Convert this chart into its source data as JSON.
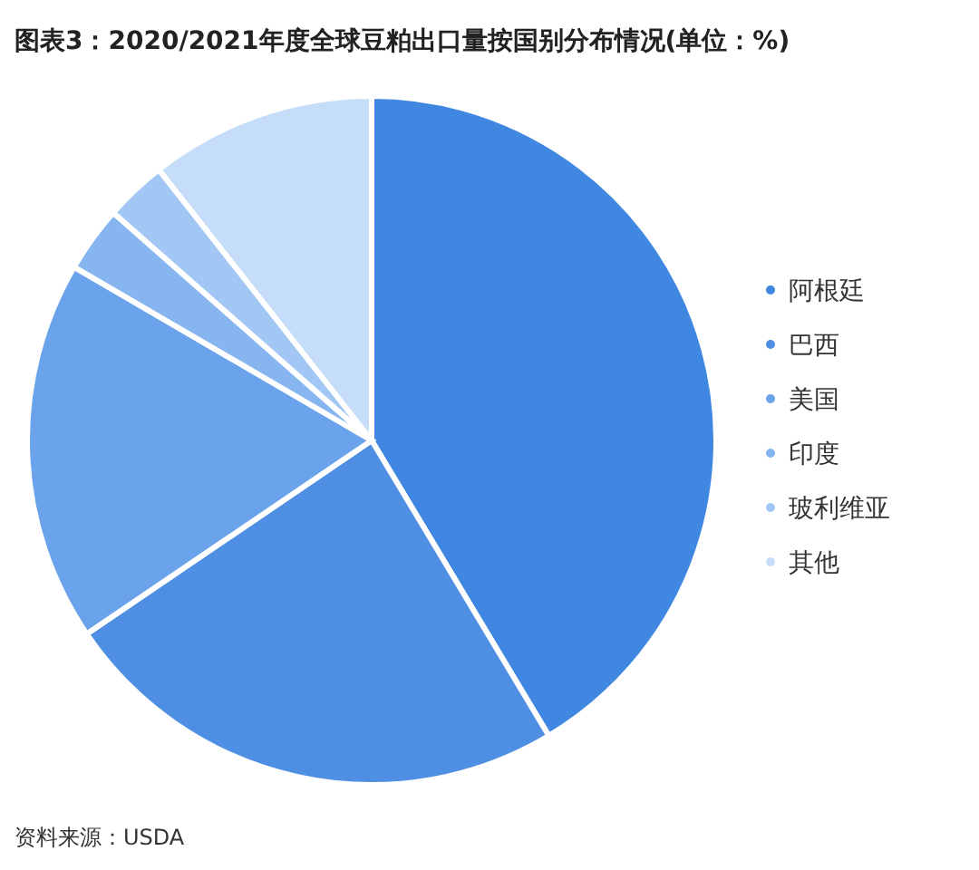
{
  "chart_data": {
    "type": "pie",
    "title": "图表3：2020/2021年度全球豆粕出口量按国别分布情况(单位：%)",
    "categories": [
      "阿根廷",
      "巴西",
      "美国",
      "印度",
      "玻利维亚",
      "其他"
    ],
    "values": [
      41.4,
      24.1,
      17.9,
      3.1,
      2.9,
      10.6
    ],
    "colors": [
      "#3f87e0",
      "#4e8fe4",
      "#6aa3eb",
      "#86b5f0",
      "#a2c7f4",
      "#c5ddf9"
    ],
    "legend": "right",
    "annotations": [
      "资料来源：USDA"
    ]
  }
}
